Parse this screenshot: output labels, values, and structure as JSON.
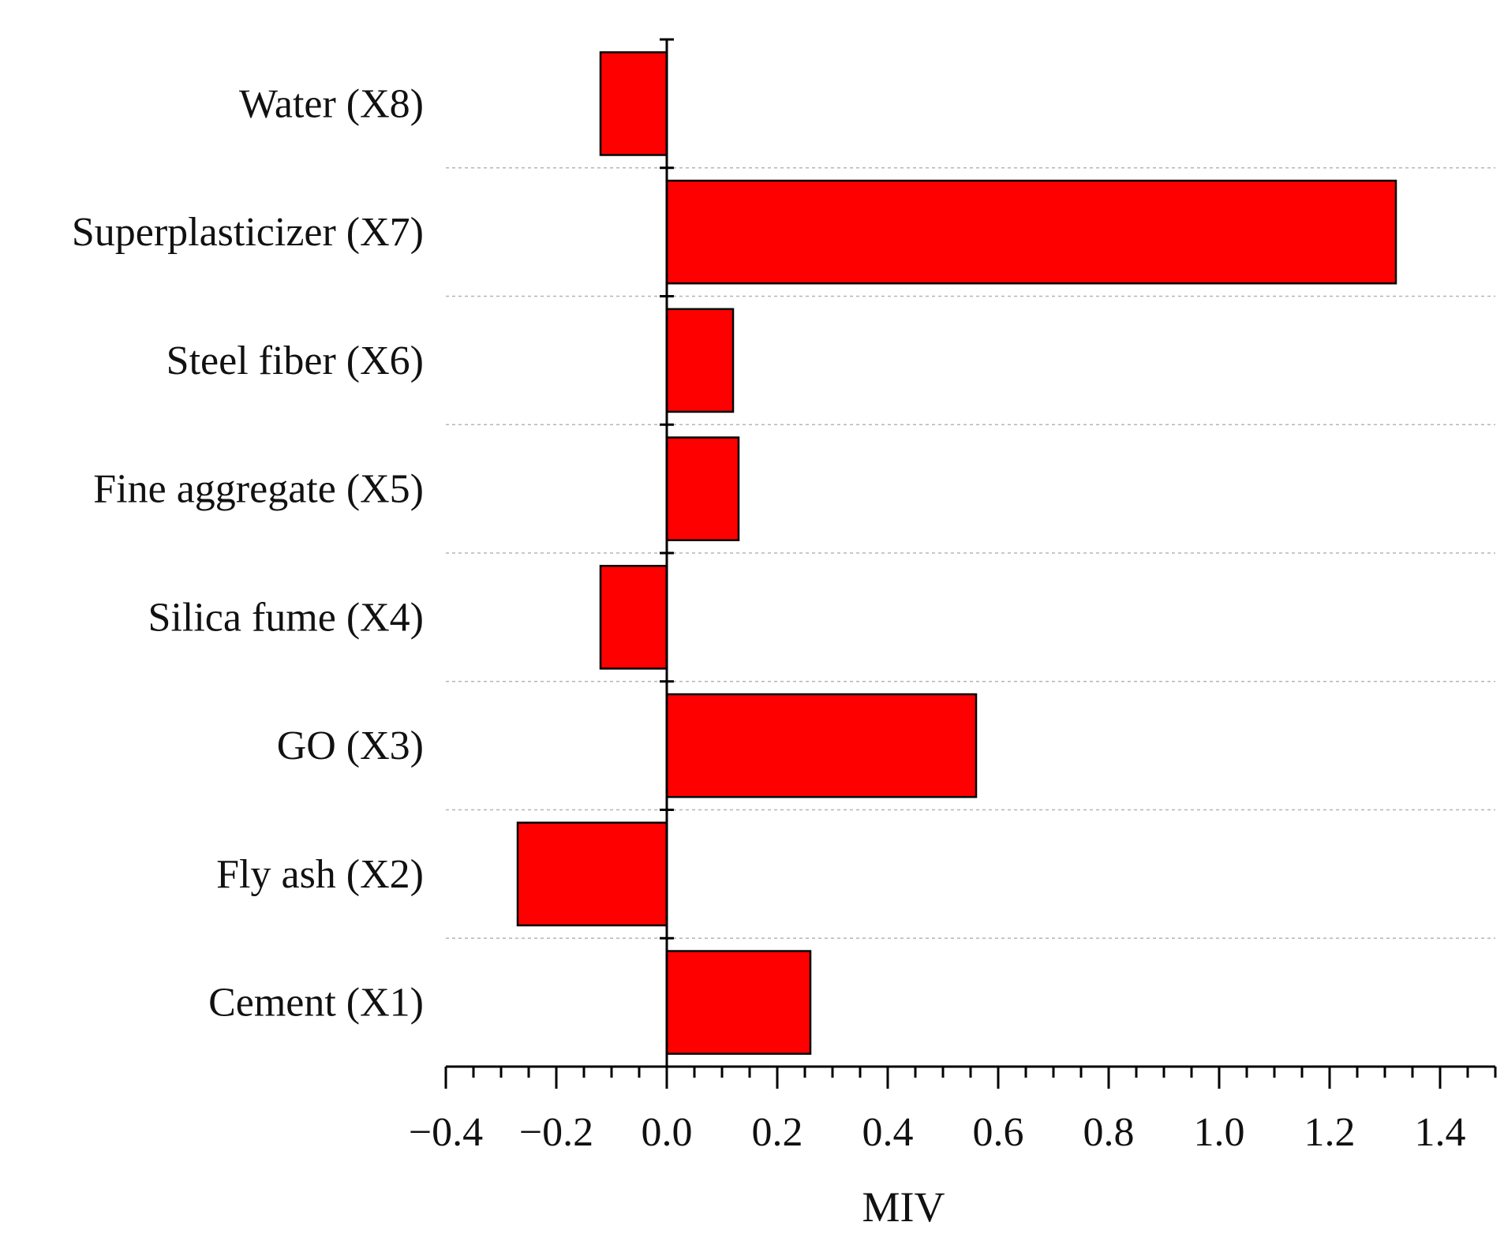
{
  "chart_data": {
    "type": "bar",
    "orientation": "horizontal",
    "title": "",
    "xlabel": "MIV",
    "ylabel": "",
    "xlim": [
      -0.4,
      1.5
    ],
    "xticks": [
      -0.4,
      -0.2,
      0.0,
      0.2,
      0.4,
      0.6,
      0.8,
      1.0,
      1.2,
      1.4
    ],
    "xtick_labels": [
      "−0.4",
      "−0.2",
      "0.0",
      "0.2",
      "0.4",
      "0.6",
      "0.8",
      "1.0",
      "1.2",
      "1.4"
    ],
    "categories": [
      "Water (X8)",
      "Superplasticizer (X7)",
      "Steel fiber (X6)",
      "Fine aggregate (X5)",
      "Silica fume (X4)",
      "GO (X3)",
      "Fly ash (X2)",
      "Cement (X1)"
    ],
    "values": [
      -0.12,
      1.32,
      0.12,
      0.13,
      -0.12,
      0.56,
      -0.27,
      0.26
    ],
    "bar_color": "#ff0000",
    "grid": "horizontal dashed between categories",
    "legend": "none"
  }
}
